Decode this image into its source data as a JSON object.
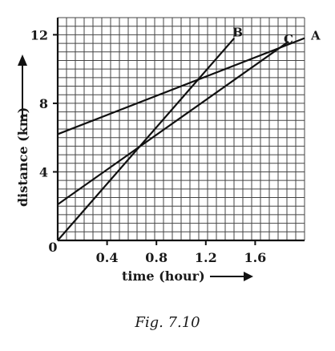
{
  "caption": "Fig. 7.10",
  "chart_data": {
    "type": "line",
    "xlabel": "time (hour)",
    "ylabel": "distance (km)",
    "xlim": [
      0,
      2.0
    ],
    "ylim": [
      0,
      13
    ],
    "xticks": [
      "0.4",
      "0.8",
      "1.2",
      "1.6"
    ],
    "xtick_values": [
      0.4,
      0.8,
      1.2,
      1.6
    ],
    "yticks": [
      "4",
      "8",
      "12"
    ],
    "ytick_values": [
      4,
      8,
      12
    ],
    "origin_label": "0",
    "grid": true,
    "series": [
      {
        "name": "A",
        "x": [
          0,
          2.0
        ],
        "y": [
          6.2,
          11.8
        ]
      },
      {
        "name": "B",
        "x": [
          0,
          1.43
        ],
        "y": [
          0,
          11.8
        ]
      },
      {
        "name": "C",
        "x": [
          0,
          1.87
        ],
        "y": [
          2.1,
          11.6
        ]
      }
    ]
  }
}
